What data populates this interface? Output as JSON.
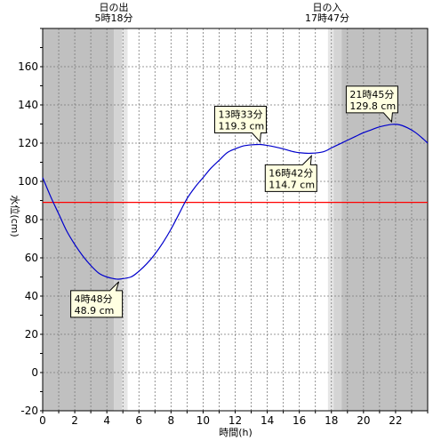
{
  "chart_data": {
    "type": "line",
    "xlabel": "時間(h)",
    "ylabel": "水位(cm)",
    "xlim": [
      0,
      24
    ],
    "ylim": [
      -20,
      180
    ],
    "x_ticks": [
      0,
      2,
      4,
      6,
      8,
      10,
      12,
      14,
      16,
      18,
      20,
      22
    ],
    "y_ticks": [
      -20,
      0,
      20,
      40,
      60,
      80,
      100,
      120,
      140,
      160
    ],
    "x_ticks_text": [
      "0",
      "2",
      "4",
      "6",
      "8",
      "10",
      "12",
      "14",
      "16",
      "18",
      "20",
      "22"
    ],
    "y_ticks_text": [
      "-20",
      "0",
      "20",
      "40",
      "60",
      "80",
      "100",
      "120",
      "140",
      "160"
    ],
    "grid": true,
    "sunrise": {
      "title": "日の出",
      "time": "5時18分",
      "hour": 5.3
    },
    "sunset": {
      "title": "日の入",
      "time": "17時47分",
      "hour": 17.783
    },
    "reference_level": 89,
    "series": [
      {
        "x": [
          0,
          0.5,
          1,
          1.5,
          2,
          2.5,
          3,
          3.5,
          4,
          4.5,
          4.8,
          5.5,
          6,
          6.5,
          7,
          7.5,
          8,
          8.5,
          9,
          9.5,
          10,
          10.5,
          11,
          11.5,
          12,
          12.5,
          13,
          13.55,
          14,
          14.5,
          15,
          15.5,
          16,
          16.7,
          17.5,
          18,
          18.5,
          19,
          19.5,
          20,
          20.5,
          21,
          21.75,
          22.25,
          22.75,
          23.25,
          23.75,
          24
        ],
        "y": [
          102,
          92,
          83,
          74,
          67,
          61,
          56,
          52,
          50,
          49,
          48.9,
          50,
          53,
          57,
          62,
          68,
          75,
          83,
          91,
          97,
          102,
          107,
          111,
          115,
          117,
          118.5,
          119.1,
          119.3,
          118.8,
          118,
          117,
          115.8,
          115,
          114.7,
          115.5,
          117.5,
          119.5,
          121.5,
          123.5,
          125.5,
          127,
          128.5,
          129.8,
          129.6,
          128,
          125.5,
          122,
          120
        ]
      }
    ],
    "annotations": [
      {
        "time": "4時48分",
        "value": "48.9 cm",
        "x": 4.8,
        "y": 48.9,
        "side": "below-left"
      },
      {
        "time": "13時33分",
        "value": "119.3 cm",
        "x": 13.55,
        "y": 119.3,
        "side": "above"
      },
      {
        "time": "16時42分",
        "value": "114.7 cm",
        "x": 16.7,
        "y": 114.7,
        "side": "below"
      },
      {
        "time": "21時45分",
        "value": "129.8 cm",
        "x": 21.75,
        "y": 129.8,
        "side": "above"
      }
    ],
    "colors": {
      "line": "#0000cc",
      "reference_line": "#ff0000",
      "night": "#c0c0c0",
      "twilight_dark": "#d4d4d4",
      "twilight_light": "#e6e6e6",
      "day": "#ffffff",
      "callout_fill": "#ffffe1"
    }
  }
}
